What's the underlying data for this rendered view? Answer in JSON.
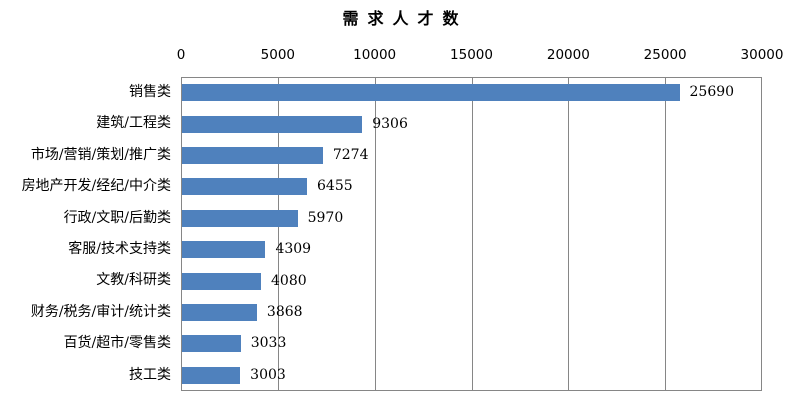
{
  "chart_data": {
    "type": "bar",
    "orientation": "horizontal",
    "title": "需求人才数",
    "categories": [
      "销售类",
      "建筑/工程类",
      "市场/营销/策划/推广类",
      "房地产开发/经纪/中介类",
      "行政/文职/后勤类",
      "客服/技术支持类",
      "文教/科研类",
      "财务/税务/审计/统计类",
      "百货/超市/零售类",
      "技工类"
    ],
    "values": [
      25690,
      9306,
      7274,
      6455,
      5970,
      4309,
      4080,
      3868,
      3033,
      3003
    ],
    "data_labels": [
      "25690",
      "9306",
      "7274",
      "6455",
      "5970",
      "4309",
      "4080",
      "3868",
      "3033",
      "3003"
    ],
    "xlim": [
      0,
      30000
    ],
    "x_ticks": [
      0,
      5000,
      10000,
      15000,
      20000,
      25000,
      30000
    ],
    "x_tick_labels": [
      "0",
      "5000",
      "10000",
      "15000",
      "20000",
      "25000",
      "30000"
    ],
    "grid": "vertical-only",
    "legend": "none",
    "axis_position": "top"
  },
  "colors": {
    "bar": "#4f81bd",
    "grid": "#868686",
    "text": "#000000",
    "background": "#ffffff"
  }
}
